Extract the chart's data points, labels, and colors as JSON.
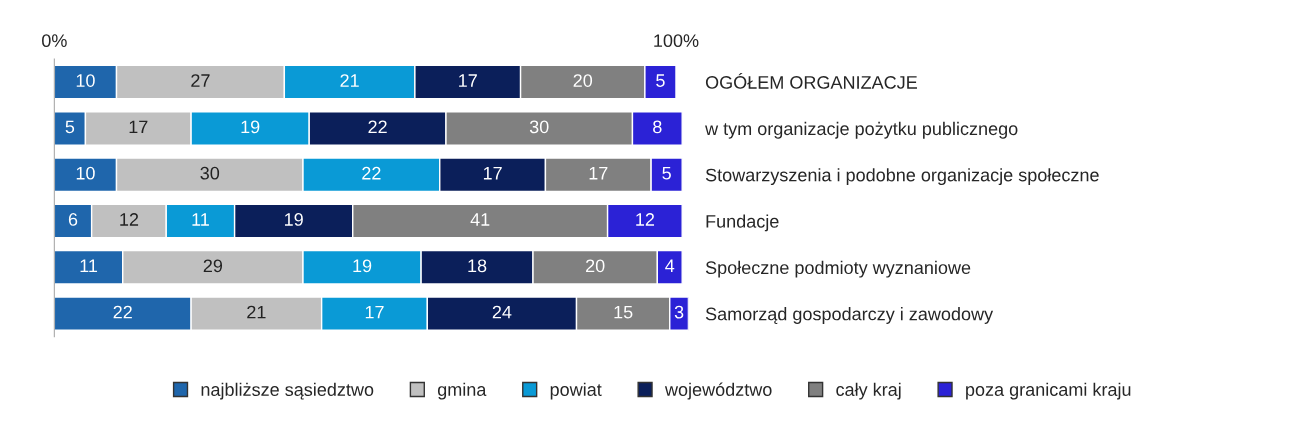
{
  "chart_data": {
    "type": "bar",
    "orientation": "horizontal",
    "stacked": true,
    "data_labels": true,
    "legend": "bottom",
    "grid": false,
    "categories": [
      "OGÓŁEM ORGANIZACJE",
      "w tym organizacje pożytku publicznego",
      "Stowarzyszenia i podobne organizacje społeczne",
      "Fundacje",
      "Społeczne podmioty wyznaniowe",
      "Samorząd gospodarczy i zawodowy"
    ],
    "xlim": [
      0,
      102
    ],
    "xticks": [
      {
        "value": 0,
        "label": "0%"
      },
      {
        "value": 100,
        "label": "100%"
      }
    ],
    "series": [
      {
        "name": "najbliższe sąsiedztwo",
        "color": "#1f66ac",
        "values": [
          10,
          5,
          10,
          6,
          11,
          22
        ]
      },
      {
        "name": "gmina",
        "color": "#c0c0c0",
        "values": [
          27,
          17,
          30,
          12,
          29,
          21
        ]
      },
      {
        "name": "powiat",
        "color": "#0a9ad6",
        "values": [
          21,
          19,
          22,
          11,
          19,
          17
        ]
      },
      {
        "name": "województwo",
        "color": "#0b1f5a",
        "values": [
          17,
          22,
          17,
          19,
          18,
          24
        ]
      },
      {
        "name": "cały kraj",
        "color": "#808080",
        "values": [
          20,
          30,
          17,
          41,
          20,
          15
        ]
      },
      {
        "name": "poza granicami kraju",
        "color": "#2b22d6",
        "values": [
          5,
          8,
          5,
          12,
          4,
          3
        ]
      }
    ]
  }
}
